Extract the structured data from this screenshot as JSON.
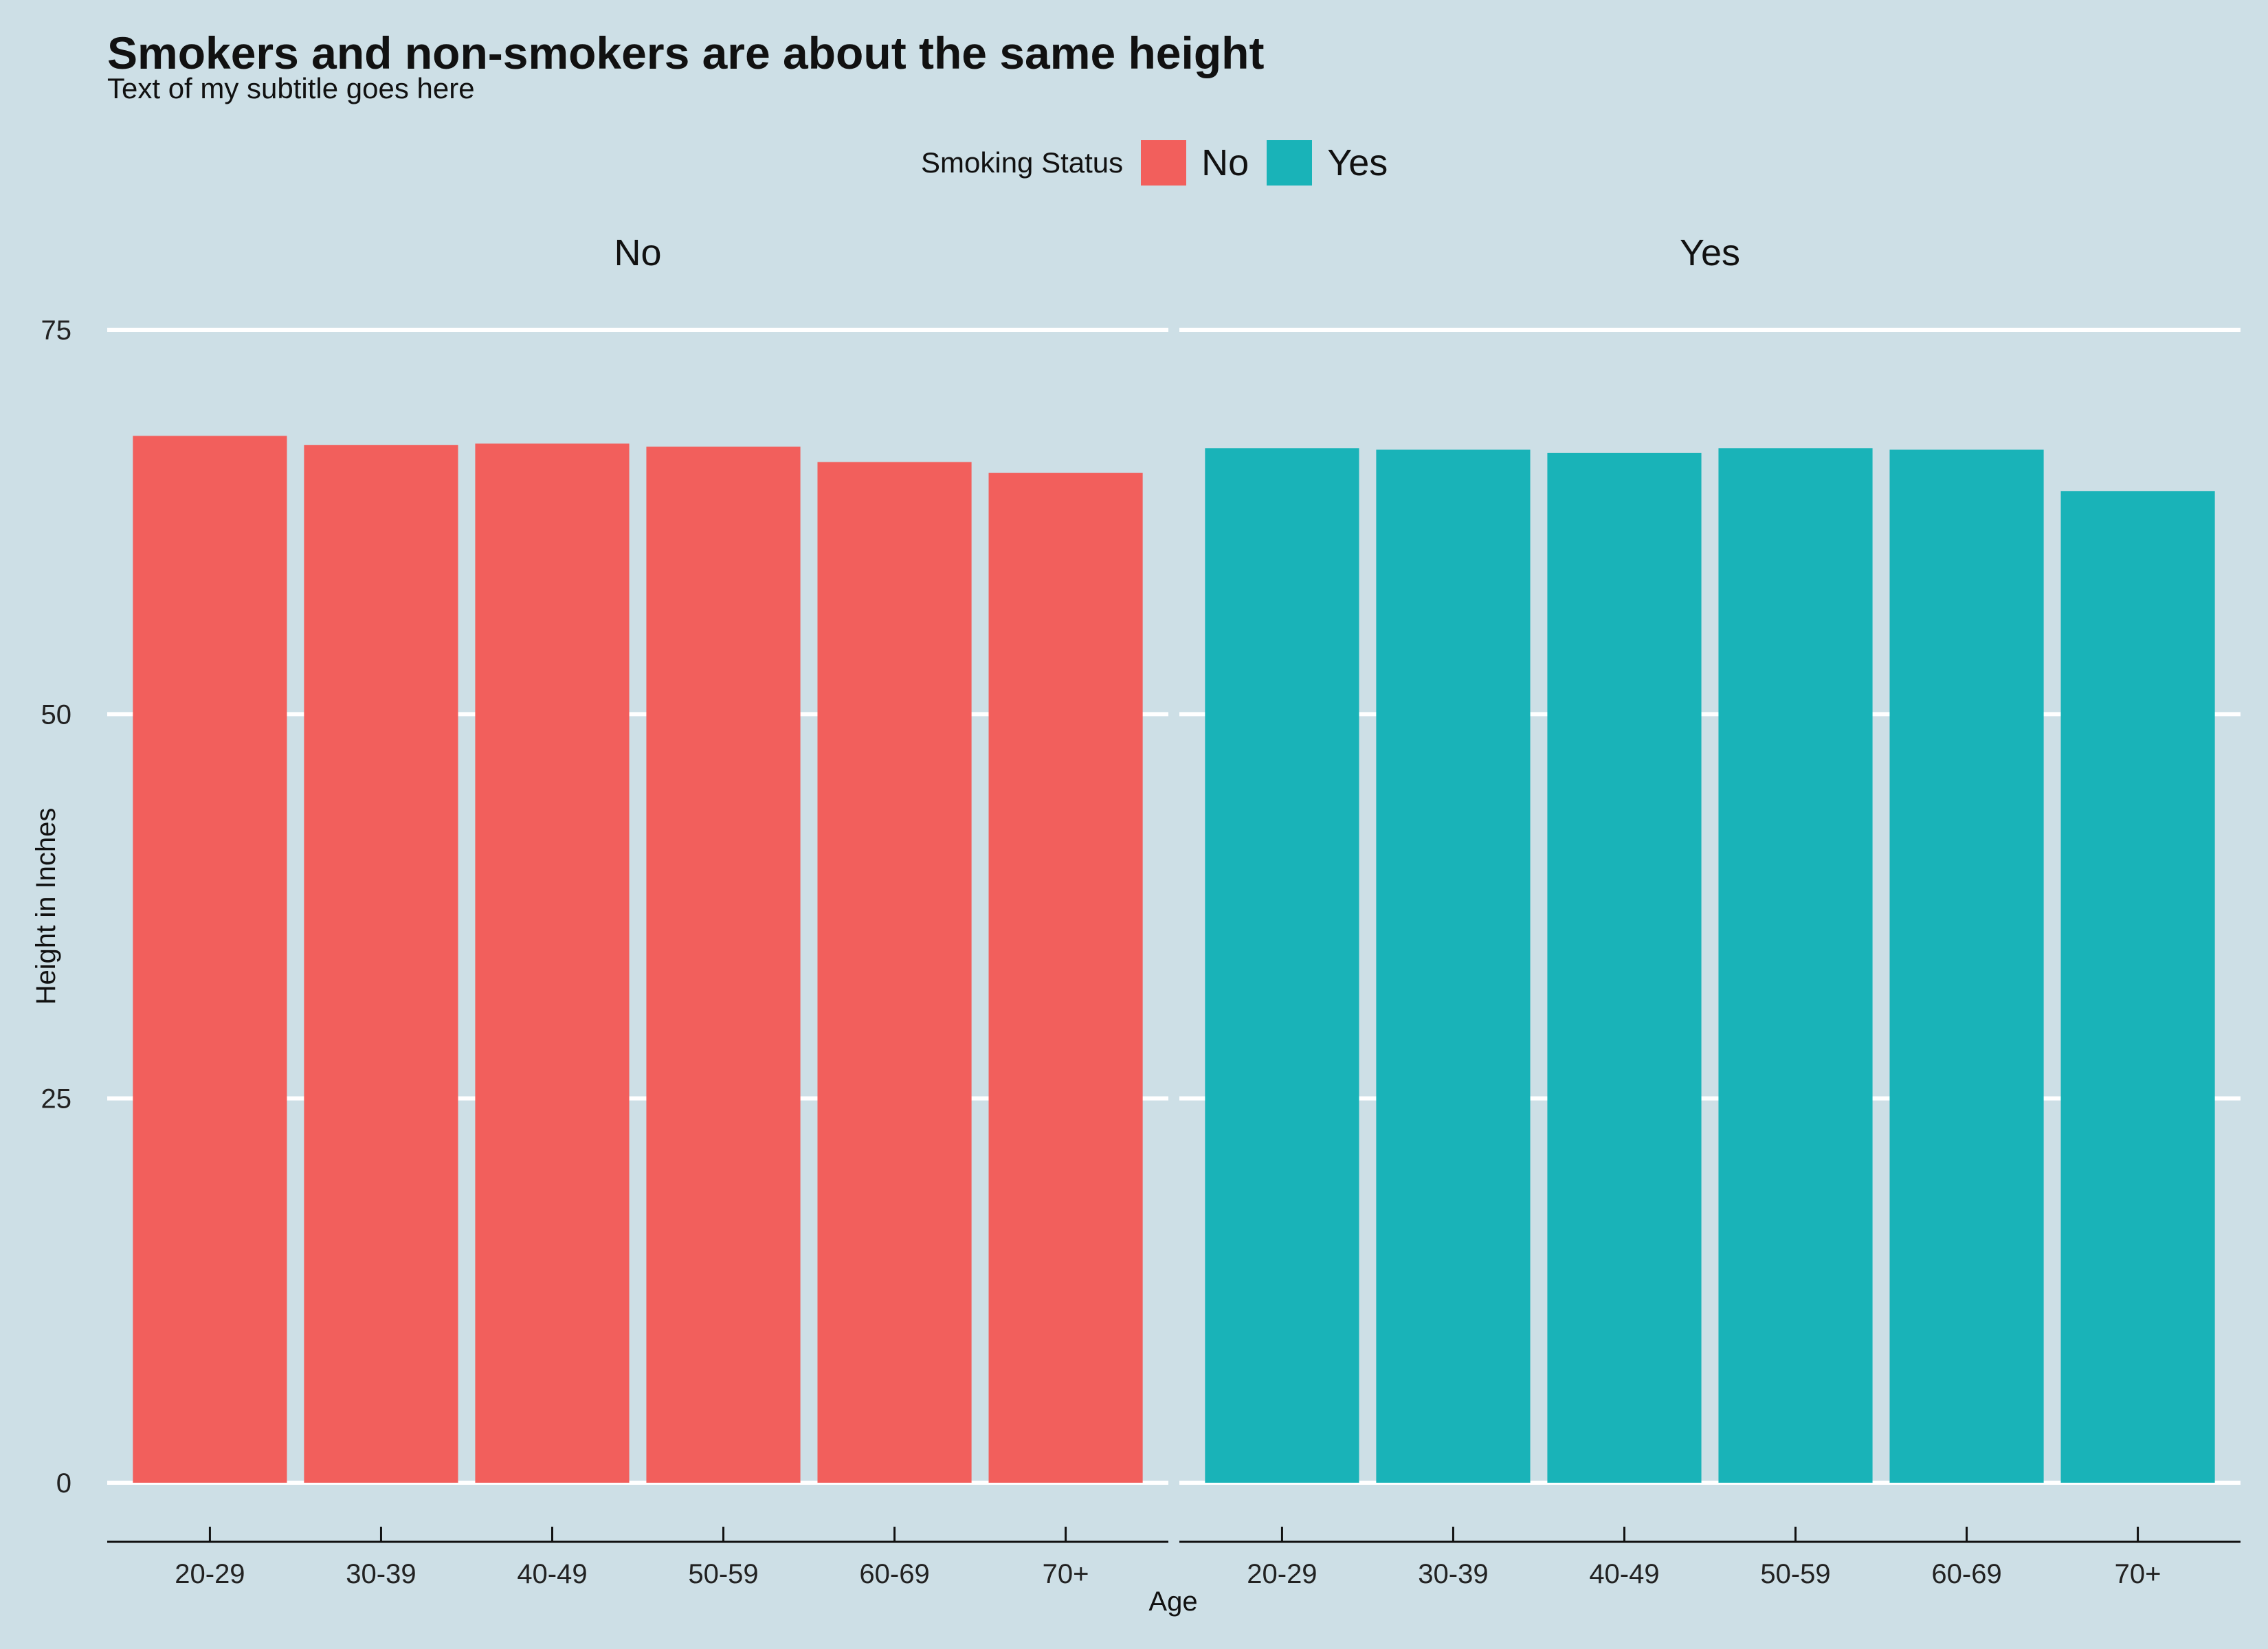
{
  "title": "Smokers and non-smokers are about the same height",
  "subtitle": "Text of my subtitle goes here",
  "legend": {
    "title": "Smoking Status",
    "items": [
      {
        "label": "No",
        "color": "#f25f5c"
      },
      {
        "label": "Yes",
        "color": "#19b3b8"
      }
    ]
  },
  "chart_data": {
    "type": "bar",
    "facet_by": "Smoking Status",
    "panels": [
      {
        "label": "No",
        "color": "#f25f5c",
        "values": [
          68.1,
          67.5,
          67.6,
          67.4,
          66.4,
          65.7
        ]
      },
      {
        "label": "Yes",
        "color": "#19b3b8",
        "values": [
          67.3,
          67.2,
          67.0,
          67.3,
          67.2,
          64.5
        ]
      }
    ],
    "categories": [
      "20-29",
      "30-39",
      "40-49",
      "50-59",
      "60-69",
      "70+"
    ],
    "xlabel": "Age",
    "ylabel": "Height in Inches",
    "ylim": [
      0,
      75
    ],
    "yticks": [
      0,
      25,
      50,
      75
    ],
    "grid": "horizontal",
    "legend_position": "top"
  }
}
